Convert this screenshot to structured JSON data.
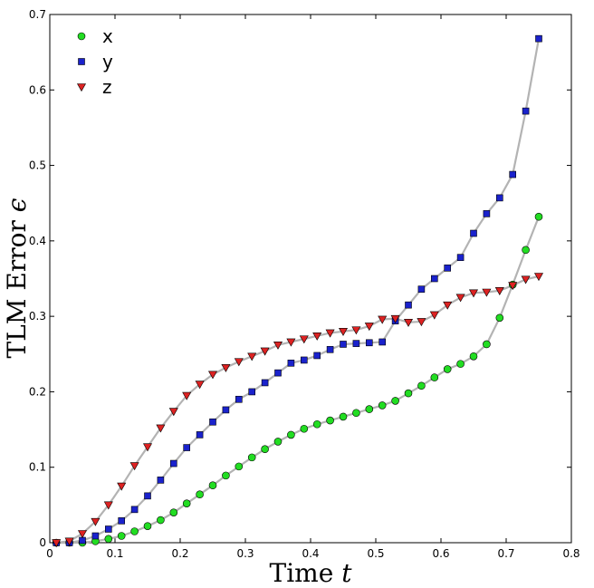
{
  "chart_data": {
    "type": "line",
    "title": "",
    "xlabel": "Time",
    "xlabel_var": "t",
    "ylabel": "TLM Error",
    "ylabel_var": "ϵ",
    "xlim": [
      0,
      0.8
    ],
    "ylim": [
      0,
      0.7
    ],
    "xticks": [
      "0",
      "0.1",
      "0.2",
      "0.3",
      "0.4",
      "0.5",
      "0.6",
      "0.7",
      "0.8"
    ],
    "yticks": [
      "0",
      "0.1",
      "0.2",
      "0.3",
      "0.4",
      "0.5",
      "0.6",
      "0.7"
    ],
    "grid": false,
    "legend_position": "top-left",
    "line_color": "#b3b3b3",
    "x": [
      0.01,
      0.03,
      0.05,
      0.07,
      0.09,
      0.11,
      0.13,
      0.15,
      0.17,
      0.19,
      0.21,
      0.23,
      0.25,
      0.27,
      0.29,
      0.31,
      0.33,
      0.35,
      0.37,
      0.39,
      0.41,
      0.43,
      0.45,
      0.47,
      0.49,
      0.51,
      0.53,
      0.55,
      0.57,
      0.59,
      0.61,
      0.63,
      0.65,
      0.67,
      0.69,
      0.71,
      0.73,
      0.75
    ],
    "series": [
      {
        "name": "x",
        "marker": "circle",
        "color": "#22dd22",
        "values": [
          0.0,
          0.0,
          0.0,
          0.002,
          0.005,
          0.009,
          0.015,
          0.022,
          0.03,
          0.04,
          0.052,
          0.064,
          0.076,
          0.089,
          0.101,
          0.113,
          0.124,
          0.134,
          0.143,
          0.151,
          0.157,
          0.162,
          0.167,
          0.172,
          0.177,
          0.182,
          0.188,
          0.198,
          0.208,
          0.219,
          0.23,
          0.237,
          0.247,
          0.263,
          0.298,
          0.342,
          0.388,
          0.432
        ]
      },
      {
        "name": "y",
        "marker": "square",
        "color": "#1a22cc",
        "values": [
          0.0,
          0.0,
          0.003,
          0.009,
          0.018,
          0.029,
          0.044,
          0.062,
          0.083,
          0.105,
          0.126,
          0.143,
          0.16,
          0.176,
          0.19,
          0.2,
          0.212,
          0.225,
          0.238,
          0.242,
          0.248,
          0.256,
          0.263,
          0.264,
          0.265,
          0.266,
          0.294,
          0.315,
          0.336,
          0.35,
          0.364,
          0.378,
          0.41,
          0.436,
          0.457,
          0.488,
          0.572,
          0.668
        ]
      },
      {
        "name": "z",
        "marker": "triangle-down",
        "color": "#dd2222",
        "values": [
          0.0,
          0.002,
          0.012,
          0.028,
          0.05,
          0.075,
          0.102,
          0.127,
          0.152,
          0.174,
          0.195,
          0.21,
          0.223,
          0.232,
          0.24,
          0.247,
          0.254,
          0.262,
          0.266,
          0.27,
          0.274,
          0.278,
          0.28,
          0.282,
          0.287,
          0.296,
          0.297,
          0.292,
          0.293,
          0.302,
          0.315,
          0.325,
          0.331,
          0.332,
          0.334,
          0.341,
          0.349,
          0.353
        ]
      }
    ]
  }
}
